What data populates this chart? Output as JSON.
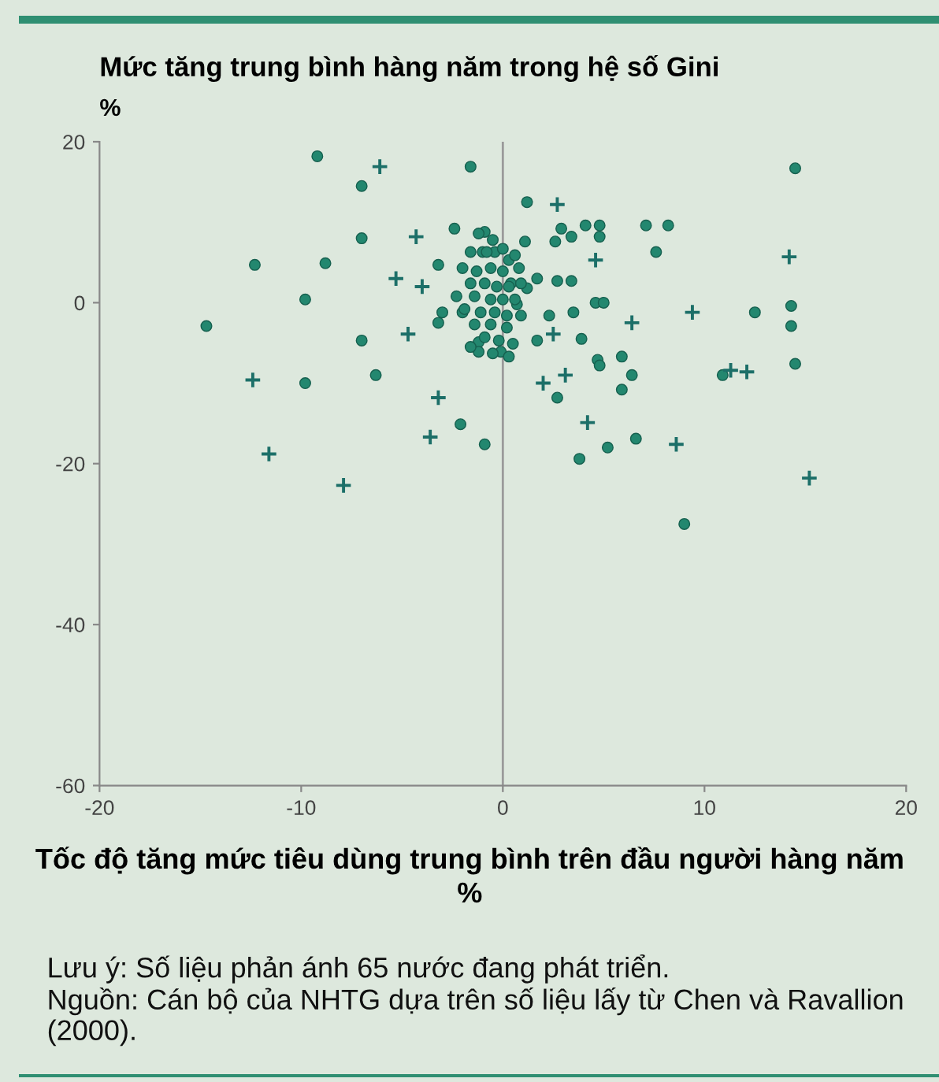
{
  "chart_data": {
    "type": "scatter",
    "title": "Mức tăng trung bình hàng năm trong hệ số Gini",
    "ylabel": "%",
    "xlabel": "Tốc độ tăng mức tiêu dùng trung bình trên đầu người hàng năm\n%",
    "annotations": [
      "Lưu ý: Số liệu phản ánh 65 nước đang phát triển.",
      "Nguồn: Cán bộ của NHTG dựa trên số liệu lấy từ Chen và Ravallion (2000)."
    ],
    "xlim": [
      -20,
      20
    ],
    "ylim": [
      -60,
      20
    ],
    "xticks": [
      -20,
      -10,
      0,
      10,
      20
    ],
    "yticks": [
      -60,
      -40,
      -20,
      0,
      20
    ],
    "ref_lines": [
      {
        "axis": "x",
        "value": 0,
        "color": "#9a9a9a"
      }
    ],
    "series": [
      {
        "color": "#23876f",
        "marker": "circle",
        "x": [
          -9.2,
          -7.0,
          -1.6,
          14.5,
          -7.0,
          -12.3,
          -8.8,
          -9.8,
          -14.7,
          -7.0,
          -9.8,
          -6.3,
          -2.1,
          -0.9,
          -2.4,
          -3.2,
          -3.0,
          -2.0,
          -3.2,
          -1.2,
          -0.9,
          -1.0,
          1.2,
          4.1,
          4.8,
          2.9,
          3.4,
          2.6,
          1.1,
          4.8,
          7.1,
          8.2,
          7.6,
          -0.4,
          0.3,
          1.7,
          2.7,
          3.4,
          1.2,
          0.4,
          4.6,
          5.0,
          3.5,
          2.3,
          0.7,
          12.5,
          14.3,
          14.3,
          1.7,
          3.9,
          -0.1,
          -1.2,
          4.7,
          5.9,
          4.8,
          6.4,
          2.7,
          5.9,
          10.9,
          14.5,
          6.6,
          5.2,
          3.8,
          9.0,
          -1.2,
          -0.5,
          -1.6,
          -0.8,
          0.0,
          0.6,
          -2.0,
          -1.3,
          -0.6,
          0.0,
          0.8,
          -1.6,
          -0.9,
          -0.3,
          0.3,
          0.9,
          -2.3,
          -1.4,
          -0.6,
          0.0,
          0.6,
          -1.9,
          -1.1,
          -0.4,
          0.2,
          0.9,
          -1.4,
          -0.6,
          0.2,
          -0.9,
          -0.2,
          -1.6,
          0.5,
          -0.5,
          0.3
        ],
        "values": [
          18.2,
          14.5,
          16.9,
          16.7,
          8.0,
          4.7,
          4.9,
          0.4,
          -2.9,
          -4.7,
          -10.0,
          -9.0,
          -15.1,
          -17.6,
          9.2,
          4.7,
          -1.2,
          -1.2,
          -2.5,
          -4.9,
          8.8,
          6.3,
          12.5,
          9.6,
          9.6,
          9.2,
          8.2,
          7.6,
          7.6,
          8.2,
          9.6,
          9.6,
          6.3,
          6.3,
          5.3,
          3.0,
          2.7,
          2.7,
          1.8,
          2.4,
          0.0,
          0.0,
          -1.2,
          -1.6,
          -0.2,
          -1.2,
          -0.4,
          -2.9,
          -4.7,
          -4.5,
          -6.1,
          -6.1,
          -7.1,
          -6.7,
          -7.8,
          -9.0,
          -11.8,
          -10.8,
          -9.0,
          -7.6,
          -16.9,
          -18.0,
          -19.4,
          -27.5,
          8.6,
          7.8,
          6.3,
          6.3,
          6.7,
          5.9,
          4.3,
          3.9,
          4.3,
          3.9,
          4.3,
          2.4,
          2.4,
          2.0,
          2.0,
          2.4,
          0.8,
          0.8,
          0.4,
          0.4,
          0.4,
          -0.8,
          -1.2,
          -1.2,
          -1.6,
          -1.6,
          -2.7,
          -2.7,
          -3.1,
          -4.3,
          -4.7,
          -5.5,
          -5.1,
          -6.3,
          -6.7
        ]
      },
      {
        "color": "#1c6f68",
        "marker": "cross",
        "x": [
          -6.1,
          -4.7,
          -12.4,
          -3.2,
          -3.6,
          -11.6,
          -7.9,
          -4.3,
          -5.3,
          -4.0,
          2.7,
          4.6,
          14.2,
          6.4,
          9.4,
          2.5,
          2.0,
          3.1,
          11.3,
          12.1,
          4.2,
          8.6,
          15.2
        ],
        "values": [
          16.9,
          -3.9,
          -9.6,
          -11.8,
          -16.7,
          -18.8,
          -22.7,
          8.2,
          3.0,
          2.0,
          12.2,
          5.3,
          5.7,
          -2.5,
          -1.2,
          -3.9,
          -10.0,
          -9.0,
          -8.4,
          -8.6,
          -14.9,
          -17.6,
          -21.8
        ]
      }
    ]
  }
}
